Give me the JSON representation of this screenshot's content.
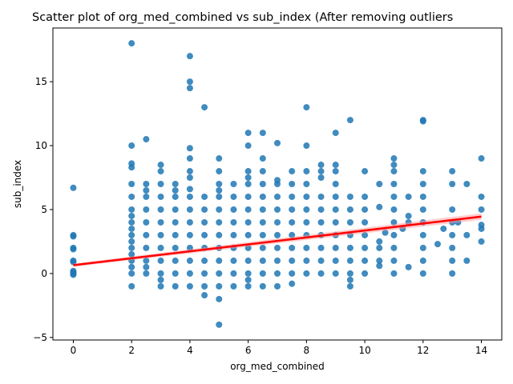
{
  "chart_data": {
    "type": "scatter",
    "title": "Scatter plot of org_med_combined vs sub_index (After removing outliers",
    "xlabel": "org_med_combined",
    "ylabel": "sub_index",
    "xlim": [
      -0.7,
      14.7
    ],
    "ylim": [
      -5.2,
      19.2
    ],
    "xticks": [
      0,
      2,
      4,
      6,
      8,
      10,
      12,
      14
    ],
    "yticks": [
      -5,
      0,
      5,
      10,
      15
    ],
    "grid": false,
    "colors": {
      "points": "#1f77b4",
      "regression": "#ff0000",
      "band": "#ff9a9a"
    },
    "series": [
      {
        "kind": "points",
        "columns": [
          {
            "x": 0,
            "y": [
              6.7,
              3.0,
              2.9,
              2.0,
              1.9,
              1.0,
              0.9,
              0.2,
              0.1,
              0.0,
              -0.1
            ]
          },
          {
            "x": 2,
            "y": [
              18.0,
              10.0,
              8.6,
              8.3,
              7.0,
              6.0,
              5.0,
              4.5,
              4.0,
              3.5,
              3.0,
              2.5,
              2.0,
              1.5,
              1.0,
              0.5,
              0.0,
              -1.0
            ]
          },
          {
            "x": 2.5,
            "y": [
              10.5,
              7.0,
              6.5,
              6.0,
              5.0,
              4.0,
              3.0,
              2.0,
              1.0,
              0.5,
              0.0
            ]
          },
          {
            "x": 3,
            "y": [
              8.5,
              8.0,
              7.0,
              6.0,
              5.0,
              4.0,
              3.0,
              2.0,
              1.0,
              0.0,
              -0.5,
              -1.0
            ]
          },
          {
            "x": 3.5,
            "y": [
              7.0,
              6.5,
              6.0,
              5.0,
              4.0,
              3.0,
              2.0,
              1.0,
              0.0,
              -1.0
            ]
          },
          {
            "x": 4,
            "y": [
              17.0,
              15.0,
              14.5,
              9.8,
              9.0,
              8.0,
              7.5,
              6.6,
              6.0,
              5.0,
              4.0,
              3.0,
              2.0,
              1.0,
              0.0,
              -1.0
            ]
          },
          {
            "x": 4.5,
            "y": [
              13.0,
              6.0,
              5.0,
              4.0,
              3.0,
              2.0,
              1.0,
              0.0,
              -1.0,
              -1.7
            ]
          },
          {
            "x": 5,
            "y": [
              9.0,
              8.0,
              7.0,
              6.5,
              6.0,
              5.0,
              4.0,
              3.0,
              2.0,
              1.0,
              0.0,
              -1.0,
              -2.0,
              -4.0
            ]
          },
          {
            "x": 5.5,
            "y": [
              7.0,
              6.0,
              5.0,
              4.0,
              3.0,
              2.0,
              1.0,
              0.0,
              -1.0
            ]
          },
          {
            "x": 6,
            "y": [
              11.0,
              10.0,
              8.0,
              7.5,
              7.0,
              6.0,
              5.0,
              4.0,
              3.0,
              2.0,
              1.0,
              0.0,
              -0.5,
              -1.0
            ]
          },
          {
            "x": 6.5,
            "y": [
              11.0,
              9.0,
              8.0,
              7.0,
              6.0,
              5.0,
              4.0,
              3.0,
              2.0,
              1.0,
              0.0,
              -1.0
            ]
          },
          {
            "x": 7,
            "y": [
              10.2,
              7.3,
              7.0,
              6.0,
              5.0,
              4.0,
              3.0,
              2.0,
              1.0,
              0.0,
              -1.0
            ]
          },
          {
            "x": 7.5,
            "y": [
              8.0,
              7.0,
              6.0,
              5.0,
              4.0,
              3.0,
              2.0,
              1.0,
              0.0,
              -0.8
            ]
          },
          {
            "x": 8,
            "y": [
              13.0,
              10.0,
              8.0,
              7.0,
              6.0,
              5.0,
              4.0,
              3.0,
              2.0,
              1.0,
              0.0
            ]
          },
          {
            "x": 8.5,
            "y": [
              8.5,
              8.0,
              7.5,
              6.0,
              5.0,
              4.0,
              3.0,
              2.0,
              1.0,
              0.0
            ]
          },
          {
            "x": 9,
            "y": [
              11.0,
              8.5,
              8.0,
              7.0,
              6.0,
              5.0,
              4.0,
              3.0,
              2.0,
              1.0,
              0.0
            ]
          },
          {
            "x": 9.5,
            "y": [
              12.0,
              6.0,
              5.0,
              4.0,
              3.0,
              2.0,
              1.0,
              0.0,
              -0.5,
              -1.0
            ]
          },
          {
            "x": 10,
            "y": [
              8.0,
              6.0,
              5.0,
              4.0,
              3.0,
              2.0,
              1.0,
              0.0
            ]
          },
          {
            "x": 10.5,
            "y": [
              7.0,
              5.2,
              2.5,
              2.0,
              1.0,
              0.6
            ]
          },
          {
            "x": 11,
            "y": [
              9.0,
              8.5,
              8.0,
              7.0,
              6.0,
              5.0,
              4.0,
              3.0,
              2.0,
              1.0,
              0.0
            ]
          },
          {
            "x": 11.5,
            "y": [
              6.0,
              4.5,
              4.0,
              0.5
            ]
          },
          {
            "x": 12,
            "y": [
              12.0,
              11.9,
              8.0,
              7.0,
              6.0,
              5.0,
              4.0,
              3.0,
              2.0,
              1.0,
              0.0
            ]
          },
          {
            "x": 13,
            "y": [
              8.0,
              7.0,
              5.0,
              4.0,
              3.0,
              2.0,
              1.0,
              0.0
            ]
          },
          {
            "x": 13.5,
            "y": [
              7.0,
              3.0,
              1.0
            ]
          },
          {
            "x": 14,
            "y": [
              9.0,
              6.0,
              5.0,
              3.8,
              3.5,
              2.5
            ]
          }
        ],
        "extras": [
          {
            "x": 10.7,
            "y": 3.2
          },
          {
            "x": 11.3,
            "y": 3.5
          },
          {
            "x": 12.5,
            "y": 2.3
          },
          {
            "x": 12.7,
            "y": 3.5
          },
          {
            "x": 13.2,
            "y": 4.0
          }
        ]
      },
      {
        "kind": "regression",
        "x": [
          0,
          14
        ],
        "y": [
          0.65,
          4.45
        ]
      }
    ]
  }
}
